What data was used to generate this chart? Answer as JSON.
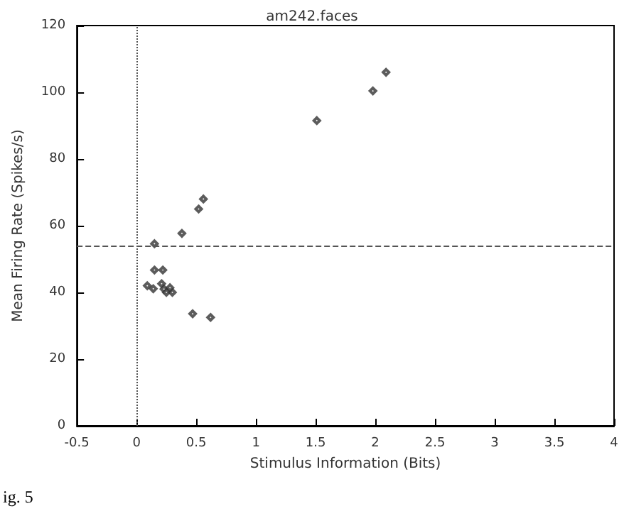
{
  "chart_data": {
    "type": "scatter",
    "title": "am242.faces",
    "xlabel": "Stimulus Information (Bits)",
    "ylabel": "Mean Firing Rate (Spikes/s)",
    "x": [
      1.51,
      1.98,
      2.09,
      0.56,
      0.52,
      0.38,
      0.15,
      0.15,
      0.22,
      0.09,
      0.14,
      0.21,
      0.23,
      0.25,
      0.3,
      0.28,
      0.47,
      0.62
    ],
    "values": [
      91.5,
      100.4,
      106,
      68,
      65,
      57.7,
      54.6,
      46.7,
      46.7,
      42,
      41.1,
      42.6,
      41,
      40,
      40,
      41.4,
      33.6,
      32.5
    ],
    "color": "#333333",
    "marker": "diamond",
    "grid": false,
    "xlim": [
      -0.5,
      4
    ],
    "xticks": [
      -0.5,
      0,
      0.5,
      1,
      1.5,
      2,
      2.5,
      3,
      3.5,
      4
    ],
    "ylim": [
      0,
      120
    ],
    "yticks": [
      0,
      20,
      40,
      60,
      80,
      100,
      120
    ],
    "ref_lines": [
      {
        "axis": "y",
        "value": 53.9,
        "line_style": "dashed",
        "color": "#555555"
      },
      {
        "axis": "x",
        "value": 0,
        "line_style": "dotted",
        "color": "#555555"
      }
    ],
    "annotations": [
      "ig. 5"
    ]
  }
}
